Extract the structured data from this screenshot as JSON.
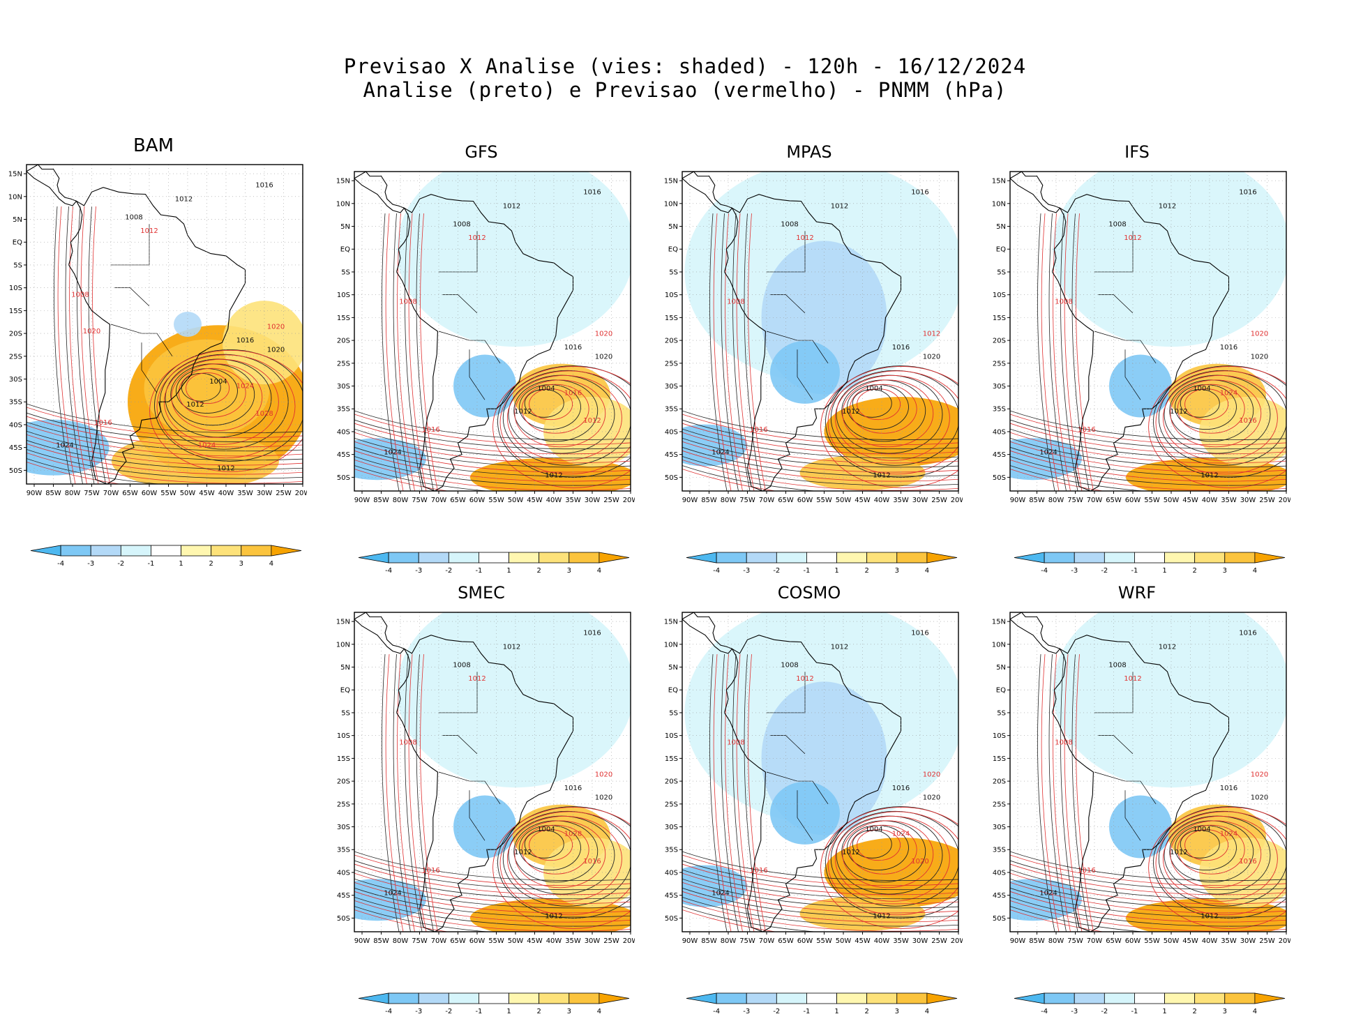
{
  "title_line1": "Previsao X Analise (vies: shaded) - 120h - 16/12/2024",
  "title_line2": "Analise (preto) e Previsao (vermelho) - PNMM (hPa)",
  "lat_labels": [
    "15N",
    "10N",
    "5N",
    "EQ",
    "5S",
    "10S",
    "15S",
    "20S",
    "25S",
    "30S",
    "35S",
    "40S",
    "45S",
    "50S"
  ],
  "lon_labels": [
    "90W",
    "85W",
    "80W",
    "75W",
    "70W",
    "65W",
    "60W",
    "55W",
    "50W",
    "45W",
    "40W",
    "35W",
    "30W",
    "25W",
    "20W"
  ],
  "colorbar": {
    "labels": [
      "-4",
      "-3",
      "-2",
      "-1",
      "1",
      "2",
      "3",
      "4"
    ],
    "colors": [
      "#4db8f0",
      "#7ec8f5",
      "#b3d9f7",
      "#d6f5fb",
      "#ffffff",
      "#fff7b0",
      "#fde27a",
      "#fbc43e",
      "#f7a300"
    ]
  },
  "models": [
    {
      "name": "BAM",
      "analysis_labels": [
        "1016",
        "1012",
        "1008",
        "1004",
        "1012",
        "1016",
        "1020",
        "1024",
        "1012"
      ],
      "forecast_labels": [
        "1012",
        "1008",
        "1016",
        "1020",
        "1024",
        "1028",
        "1024",
        "1020"
      ],
      "bias": "warm"
    },
    {
      "name": "GFS",
      "analysis_labels": [
        "1016",
        "1012",
        "1008",
        "1004",
        "1012",
        "1016",
        "1020",
        "1024",
        "1012"
      ],
      "forecast_labels": [
        "1012",
        "1008",
        "1016",
        "1020",
        "1016",
        "1012"
      ],
      "bias": "mixed"
    },
    {
      "name": "MPAS",
      "analysis_labels": [
        "1016",
        "1012",
        "1008",
        "1004",
        "1012",
        "1016",
        "1020",
        "1024",
        "1012"
      ],
      "forecast_labels": [
        "1012",
        "1008",
        "1016",
        "1012"
      ],
      "bias": "cold"
    },
    {
      "name": "IFS",
      "analysis_labels": [
        "1016",
        "1012",
        "1008",
        "1004",
        "1012",
        "1016",
        "1020",
        "1024",
        "1012"
      ],
      "forecast_labels": [
        "1012",
        "1008",
        "1016",
        "1020",
        "1024",
        "1016"
      ],
      "bias": "mixed"
    },
    {
      "name": "SMEC",
      "analysis_labels": [
        "1016",
        "1012",
        "1008",
        "1004",
        "1012",
        "1016",
        "1020",
        "1024",
        "1012"
      ],
      "forecast_labels": [
        "1012",
        "1008",
        "1016",
        "1020",
        "1028",
        "1016"
      ],
      "bias": "mixed"
    },
    {
      "name": "COSMO",
      "analysis_labels": [
        "1016",
        "1012",
        "1008",
        "1004",
        "1012",
        "1016",
        "1020",
        "1024",
        "1012"
      ],
      "forecast_labels": [
        "1012",
        "1008",
        "1016",
        "1020",
        "1024",
        "1020"
      ],
      "bias": "cold"
    },
    {
      "name": "WRF",
      "analysis_labels": [
        "1016",
        "1012",
        "1008",
        "1004",
        "1012",
        "1016",
        "1020",
        "1024",
        "1012"
      ],
      "forecast_labels": [
        "1012",
        "1008",
        "1016",
        "1020",
        "1024",
        "1016"
      ],
      "bias": "mixed"
    }
  ]
}
